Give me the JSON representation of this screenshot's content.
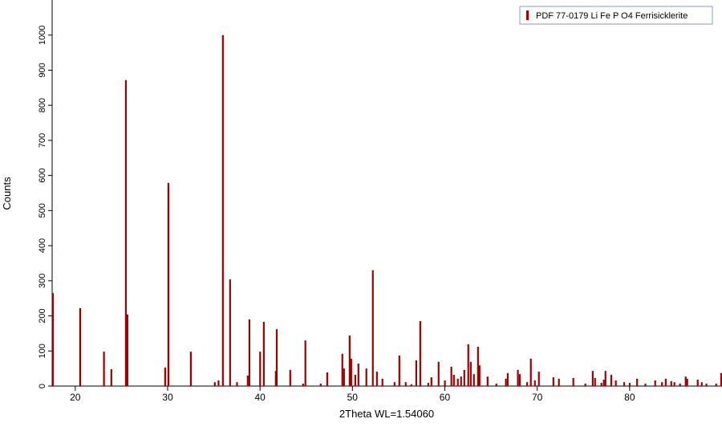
{
  "chart_data": {
    "type": "stick",
    "xlabel": "2Theta WL=1.54060",
    "ylabel": "Counts",
    "xlim": [
      17.5,
      90
    ],
    "ylim": [
      0,
      1100
    ],
    "xticks": [
      20,
      30,
      40,
      50,
      60,
      70,
      80
    ],
    "yticks": [
      0,
      100,
      200,
      300,
      400,
      500,
      600,
      700,
      800,
      900,
      1000
    ],
    "legend_position": "upper right",
    "series": [
      {
        "name": "PDF 77-0179 Li Fe P O4 Ferrisicklerite",
        "color": "#990000",
        "x": [
          17.57,
          20.52,
          23.1,
          23.9,
          25.47,
          25.64,
          29.72,
          30.07,
          32.5,
          35.1,
          35.5,
          35.97,
          36.75,
          37.5,
          38.66,
          38.84,
          40,
          40.4,
          41.7,
          41.8,
          43.26,
          44.65,
          44.9,
          46.56,
          47.26,
          48.9,
          49.08,
          49.69,
          49.86,
          50.3,
          50.64,
          51.5,
          52.2,
          52.64,
          53.24,
          54.55,
          55.07,
          55.76,
          56.37,
          56.9,
          57.33,
          58.2,
          58.54,
          59.32,
          60,
          60.7,
          60.97,
          61.4,
          61.75,
          62.1,
          62.53,
          62.8,
          63.14,
          63.58,
          63.75,
          64.62,
          65.57,
          66.6,
          66.8,
          67.9,
          68.1,
          68.9,
          69.3,
          69.74,
          70.17,
          71.74,
          72.34,
          73.9,
          75.2,
          76,
          76.25,
          76.94,
          77.2,
          77.38,
          78,
          78.5,
          79.4,
          80,
          80.8,
          81.7,
          82.76,
          83.5,
          83.9,
          84.5,
          84.84,
          85.45,
          86.06,
          86.23,
          87.36,
          87.8,
          88.3,
          89.36,
          89.9
        ],
        "values": [
          265,
          222,
          98,
          48,
          872,
          204,
          53,
          579,
          98,
          11,
          16,
          1000,
          304,
          11,
          30,
          190,
          98,
          183,
          43,
          162,
          46,
          7,
          130,
          7,
          39,
          92,
          50,
          144,
          78,
          32,
          64,
          50,
          330,
          41,
          21,
          11,
          87,
          11,
          5,
          73,
          185,
          9,
          25,
          69,
          16,
          55,
          32,
          21,
          27,
          46,
          119,
          69,
          34,
          112,
          59,
          27,
          7,
          21,
          37,
          46,
          34,
          11,
          78,
          16,
          41,
          25,
          21,
          23,
          7,
          43,
          23,
          9,
          18,
          43,
          32,
          16,
          11,
          9,
          21,
          7,
          16,
          11,
          21,
          14,
          11,
          7,
          27,
          21,
          18,
          11,
          7,
          7,
          37
        ]
      }
    ]
  }
}
